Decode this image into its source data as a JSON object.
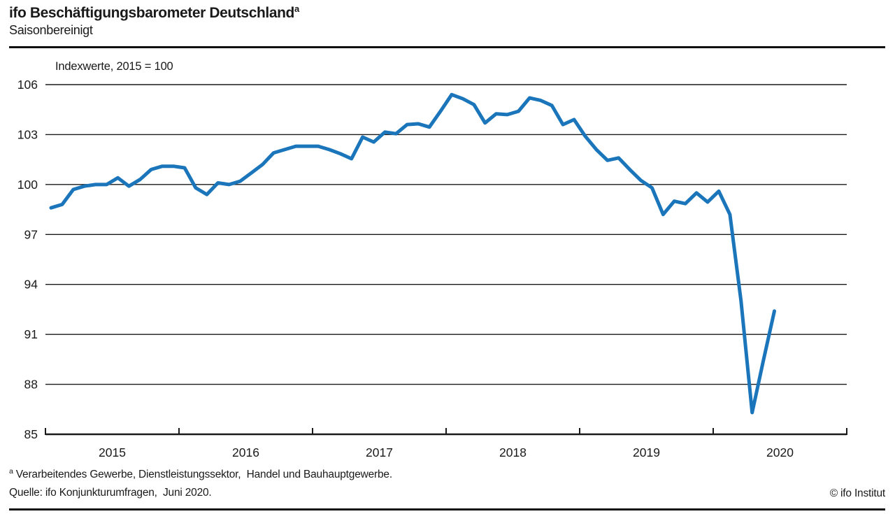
{
  "header": {
    "title": "ifo Beschäftigungsbarometer Deutschland",
    "title_sup": "a",
    "subtitle": "Saisonbereinigt"
  },
  "plot": {
    "unit_label": "Indexwerte, 2015 = 100"
  },
  "footer": {
    "footnote_sup": "a",
    "footnote": " Verarbeitendes Gewerbe, Dienstleistungssektor,  Handel und Bauhauptgewerbe.",
    "source": "Quelle: ifo Konjunkturumfragen,  Juni 2020.",
    "copyright": "© ifo Institut"
  },
  "chart_data": {
    "type": "line",
    "title": "ifo Beschäftigungsbarometer Deutschland (saisonbereinigt)",
    "ylabel": "Indexwerte, 2015 = 100",
    "x_interval": "month",
    "x_start": "2015-01",
    "x_end": "2020-06",
    "x_axis_years": [
      "2015",
      "2016",
      "2017",
      "2018",
      "2019",
      "2020"
    ],
    "ylim": [
      85,
      106
    ],
    "yticks": [
      85,
      88,
      91,
      94,
      97,
      100,
      103,
      106
    ],
    "grid": "horizontal",
    "legend": "none",
    "line_color": "#1a75ba",
    "axis_color": "#1a1a1a",
    "series": [
      {
        "name": "ifo Beschäftigungsbarometer Deutschland",
        "values": [
          98.6,
          98.8,
          99.7,
          99.9,
          100.0,
          100.0,
          100.4,
          99.9,
          100.3,
          100.9,
          101.1,
          101.1,
          101.0,
          99.8,
          99.4,
          100.1,
          100.0,
          100.2,
          100.7,
          101.2,
          101.9,
          102.1,
          102.3,
          102.3,
          102.3,
          102.1,
          101.85,
          101.55,
          102.85,
          102.55,
          103.15,
          103.05,
          103.6,
          103.65,
          103.45,
          104.4,
          105.4,
          105.15,
          104.8,
          103.7,
          104.25,
          104.2,
          104.4,
          105.2,
          105.05,
          104.75,
          103.6,
          103.9,
          102.9,
          102.1,
          101.45,
          101.6,
          100.9,
          100.25,
          99.8,
          98.2,
          99.0,
          98.85,
          99.5,
          98.95,
          99.6,
          98.2,
          93.0,
          86.3,
          89.4,
          92.4
        ]
      }
    ]
  }
}
